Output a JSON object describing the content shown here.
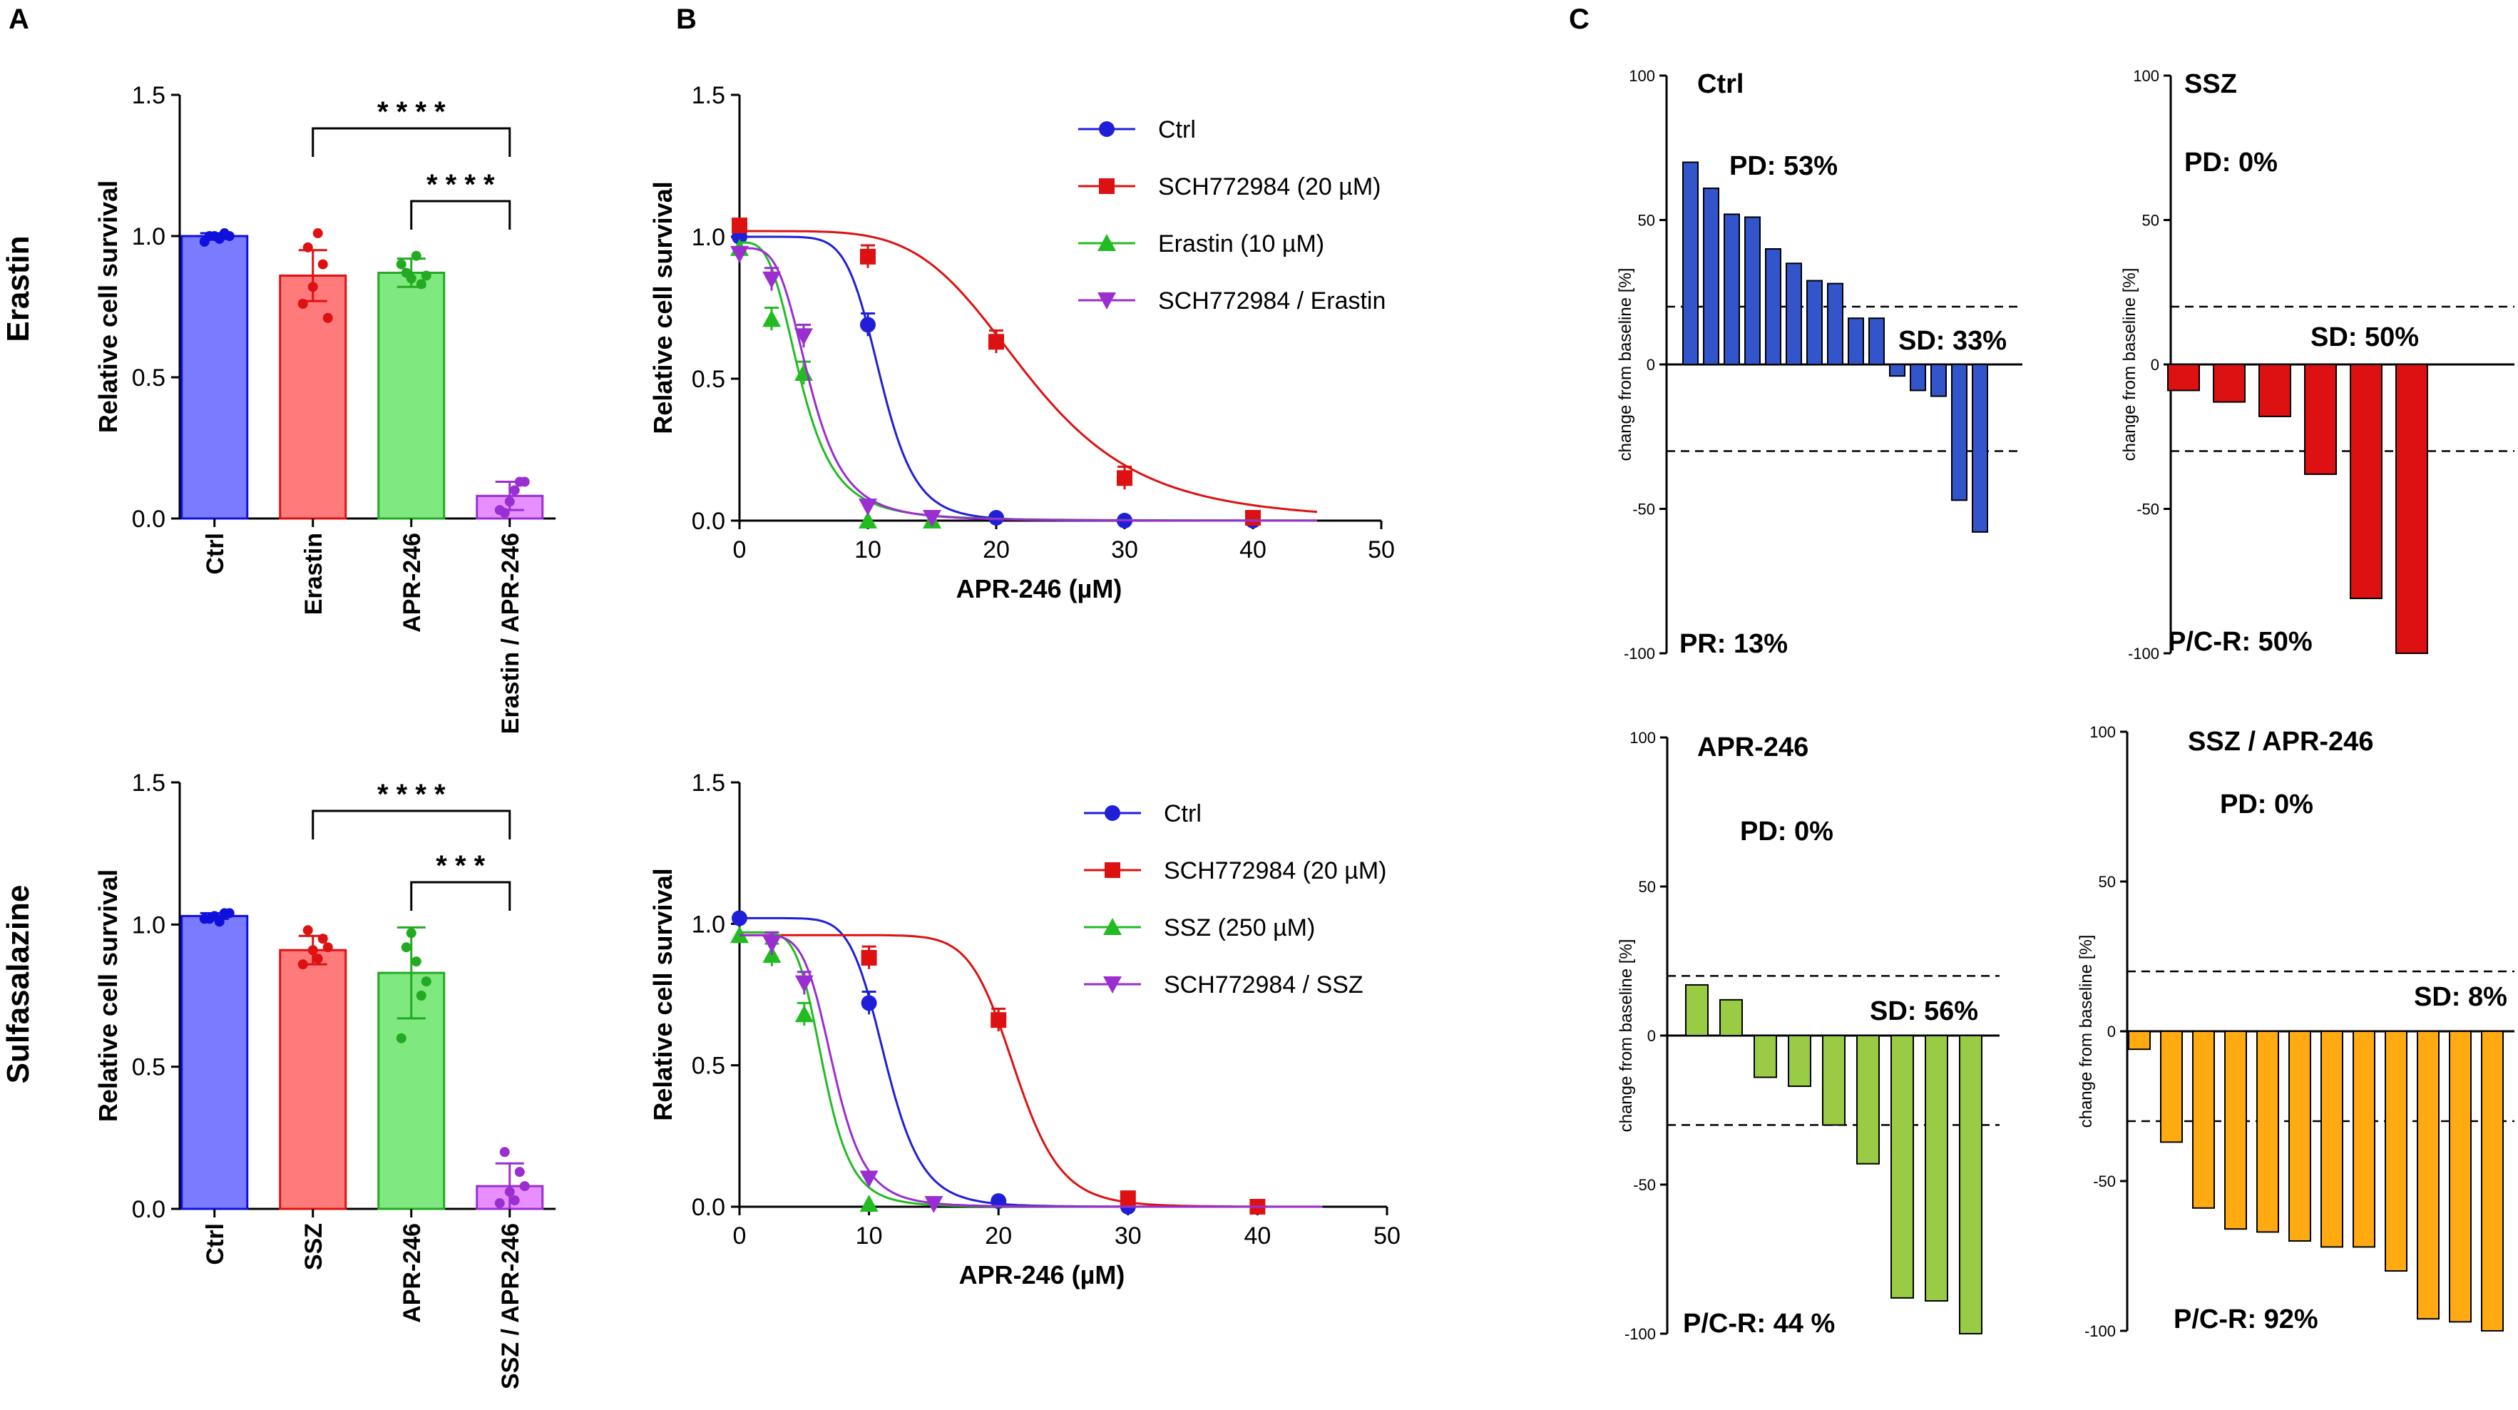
{
  "panel_labels": {
    "a": "A",
    "b": "B",
    "c": "C"
  },
  "row_labels": [
    "Erastin",
    "Sulfasalazine"
  ],
  "colors": {
    "ctrl": "#7b7bff",
    "ctrl_dark": "#1010dd",
    "treat": "#ff7b7b",
    "treat_dark": "#dd1111",
    "apr": "#7fe87f",
    "apr_dark": "#22aa22",
    "combo": "#e88fff",
    "combo_dark": "#9a2ed1",
    "curve_ctrl": "#1f1fd8",
    "curve_sch": "#dd1111",
    "curve_drug": "#22bb22",
    "curve_combo": "#9a2ed1",
    "wf_ctrl": "#3355cc",
    "wf_ssz": "#dd1111",
    "wf_apr": "#99cc44",
    "wf_combo": "#ffaa11"
  },
  "chart_data": [
    {
      "type": "bar",
      "id": "A1",
      "ylabel": "Relative cell survival",
      "ylim": [
        0,
        1.5
      ],
      "yticks": [
        "0.0",
        "0.5",
        "1.0",
        "1.5"
      ],
      "categories": [
        "Ctrl",
        "Erastin",
        "APR-246",
        "Erastin / APR-246"
      ],
      "values": [
        1.0,
        0.86,
        0.87,
        0.08
      ],
      "errors": [
        0.01,
        0.09,
        0.05,
        0.05
      ],
      "points": [
        [
          0.98,
          1.0,
          1.01,
          1.0,
          0.99,
          1.0
        ],
        [
          0.76,
          0.82,
          0.9,
          0.96,
          1.01,
          0.71
        ],
        [
          0.9,
          0.85,
          0.83,
          0.87,
          0.93,
          0.86
        ],
        [
          0.03,
          0.06,
          0.13,
          0.02,
          0.1,
          0.13
        ]
      ],
      "significance": [
        {
          "from": 1,
          "to": 3,
          "label": "* * * *"
        },
        {
          "from": 2,
          "to": 3,
          "label": "* * * *"
        }
      ]
    },
    {
      "type": "bar",
      "id": "A2",
      "ylabel": "Relative cell survival",
      "ylim": [
        0,
        1.5
      ],
      "yticks": [
        "0.0",
        "0.5",
        "1.0",
        "1.5"
      ],
      "categories": [
        "Ctrl",
        "SSZ",
        "APR-246",
        "SSZ / APR-246"
      ],
      "values": [
        1.03,
        0.91,
        0.83,
        0.08
      ],
      "errors": [
        0.01,
        0.05,
        0.16,
        0.08
      ],
      "points": [
        [
          1.02,
          1.03,
          1.04,
          1.02,
          1.01,
          1.04
        ],
        [
          0.86,
          0.91,
          0.95,
          0.98,
          0.88,
          0.92
        ],
        [
          0.6,
          0.97,
          0.75,
          0.92,
          0.87,
          0.8
        ],
        [
          0.02,
          0.06,
          0.13,
          0.2,
          0.03,
          0.08
        ]
      ],
      "significance": [
        {
          "from": 1,
          "to": 3,
          "label": "* * * *"
        },
        {
          "from": 2,
          "to": 3,
          "label": "* * *"
        }
      ]
    },
    {
      "type": "line",
      "id": "B1",
      "xlabel": "APR-246 (µM)",
      "ylabel": "Relative cell survival",
      "xlim": [
        0,
        50
      ],
      "ylim": [
        0,
        1.5
      ],
      "xticks": [
        "0",
        "10",
        "20",
        "30",
        "40",
        "50"
      ],
      "yticks": [
        "0.0",
        "0.5",
        "1.0",
        "1.5"
      ],
      "series": [
        {
          "name": "Ctrl",
          "marker": "circle",
          "color": "#1f1fd8",
          "x": [
            0,
            10,
            20,
            30,
            40
          ],
          "y": [
            1.0,
            0.69,
            0.01,
            0.0,
            0.0
          ],
          "fit": {
            "top": 1.0,
            "ic50": 11.0,
            "hill": 8
          }
        },
        {
          "name": "SCH772984 (20 µM)",
          "marker": "square",
          "color": "#dd1111",
          "x": [
            0,
            10,
            20,
            30,
            40
          ],
          "y": [
            1.04,
            0.93,
            0.63,
            0.15,
            0.01
          ],
          "fit": {
            "top": 1.02,
            "ic50": 22.5,
            "hill": 5
          }
        },
        {
          "name": "Erastin (10 µM)",
          "marker": "triangle-up",
          "color": "#22bb22",
          "x": [
            0,
            2.5,
            5,
            10,
            15
          ],
          "y": [
            0.96,
            0.71,
            0.52,
            0.0,
            0.0
          ],
          "fit": {
            "top": 0.98,
            "ic50": 4.8,
            "hill": 3.5
          }
        },
        {
          "name": "SCH772984 / Erastin",
          "marker": "triangle-down",
          "color": "#9a2ed1",
          "x": [
            0,
            2.5,
            5,
            10,
            15
          ],
          "y": [
            0.94,
            0.85,
            0.65,
            0.05,
            0.01
          ],
          "fit": {
            "top": 0.96,
            "ic50": 5.5,
            "hill": 4
          }
        }
      ]
    },
    {
      "type": "line",
      "id": "B2",
      "xlabel": "APR-246 (µM)",
      "ylabel": "Relative cell survival",
      "xlim": [
        0,
        50
      ],
      "ylim": [
        0,
        1.5
      ],
      "xticks": [
        "0",
        "10",
        "20",
        "30",
        "40",
        "50"
      ],
      "yticks": [
        "0.0",
        "0.5",
        "1.0",
        "1.5"
      ],
      "series": [
        {
          "name": "Ctrl",
          "marker": "circle",
          "color": "#1f1fd8",
          "x": [
            0,
            10,
            20,
            30,
            40
          ],
          "y": [
            1.02,
            0.72,
            0.02,
            0.0,
            0.0
          ],
          "fit": {
            "top": 1.02,
            "ic50": 11.3,
            "hill": 8
          }
        },
        {
          "name": "SCH772984 (20 µM)",
          "marker": "square",
          "color": "#dd1111",
          "x": [
            10,
            20,
            30,
            40
          ],
          "y": [
            0.88,
            0.66,
            0.03,
            0.0
          ],
          "fit": {
            "top": 0.96,
            "ic50": 21.3,
            "hill": 12
          }
        },
        {
          "name": "SSZ (250 µM)",
          "marker": "triangle-up",
          "color": "#22bb22",
          "x": [
            0,
            2.5,
            5,
            10
          ],
          "y": [
            0.96,
            0.89,
            0.68,
            0.01
          ],
          "fit": {
            "top": 0.97,
            "ic50": 6.5,
            "hill": 6
          }
        },
        {
          "name": "SCH772984 / SSZ",
          "marker": "triangle-down",
          "color": "#9a2ed1",
          "x": [
            2.5,
            5,
            10,
            15
          ],
          "y": [
            0.93,
            0.79,
            0.1,
            0.01
          ],
          "fit": {
            "top": 0.96,
            "ic50": 7.3,
            "hill": 6
          }
        }
      ]
    },
    {
      "type": "bar",
      "id": "C-Ctrl",
      "title": "Ctrl",
      "ylabel": "change from baseline [%]",
      "ylim": [
        -100,
        100
      ],
      "yticks": [
        "100",
        "50",
        "0",
        "-50",
        "-100"
      ],
      "thresholds": [
        20,
        -30
      ],
      "values": [
        70,
        61,
        52,
        51,
        40,
        35,
        29,
        28,
        16,
        16,
        -4,
        -9,
        -11,
        -47,
        -58
      ],
      "annotations": [
        "PD: 53%",
        "SD: 33%",
        "PR: 13%"
      ]
    },
    {
      "type": "bar",
      "id": "C-SSZ",
      "title": "SSZ",
      "ylabel": "change from baseline [%]",
      "ylim": [
        -100,
        100
      ],
      "yticks": [
        "100",
        "50",
        "0",
        "-50",
        "-100"
      ],
      "thresholds": [
        20,
        -30
      ],
      "values": [
        -9,
        -13,
        -18,
        -38,
        -81,
        -100
      ],
      "annotations": [
        "PD: 0%",
        "SD: 50%",
        "P/C-R: 50%"
      ]
    },
    {
      "type": "bar",
      "id": "C-APR",
      "title": "APR-246",
      "ylabel": "change from baseline [%]",
      "ylim": [
        -100,
        100
      ],
      "yticks": [
        "100",
        "50",
        "0",
        "-50",
        "-100"
      ],
      "thresholds": [
        20,
        -30
      ],
      "values": [
        17,
        12,
        -14,
        -17,
        -30,
        -43,
        -88,
        -89,
        -100
      ],
      "annotations": [
        "PD: 0%",
        "SD: 56%",
        "P/C-R: 44 %"
      ]
    },
    {
      "type": "bar",
      "id": "C-Combo",
      "title": "SSZ / APR-246",
      "ylabel": "change from baseline [%]",
      "ylim": [
        -100,
        100
      ],
      "yticks": [
        "100",
        "50",
        "0",
        "-50",
        "-100"
      ],
      "thresholds": [
        20,
        -30
      ],
      "values": [
        -6,
        -37,
        -59,
        -66,
        -67,
        -70,
        -72,
        -72,
        -80,
        -96,
        -97,
        -100
      ],
      "annotations": [
        "PD: 0%",
        "SD: 8%",
        "P/C-R: 92%"
      ]
    }
  ]
}
